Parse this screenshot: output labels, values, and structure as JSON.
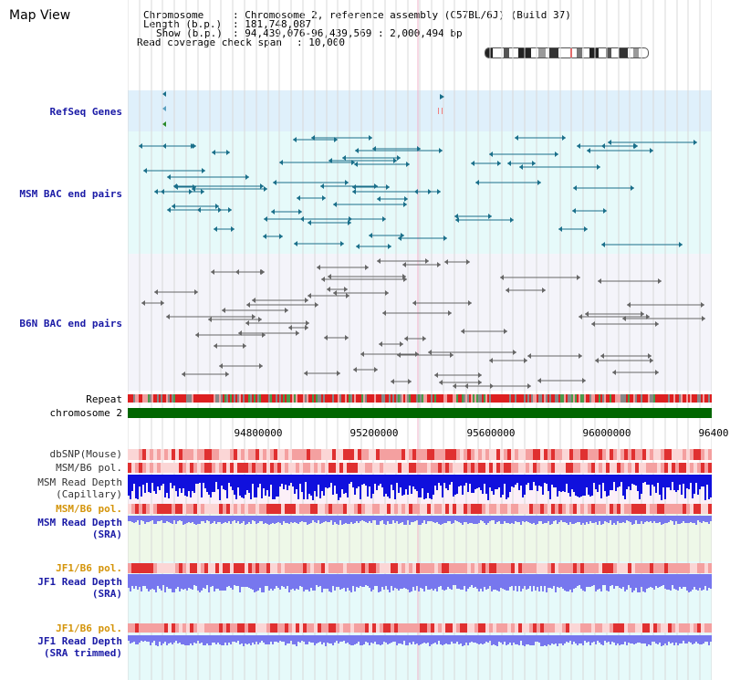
{
  "title": "Map View",
  "header": {
    "chromosome_label": "Chromosome",
    "chromosome_value": ": Chromosome 2, reference assembly (C57BL/6J) (Build 37)",
    "length_label": "Length (b.p.)",
    "length_value": ": 181,748,087",
    "show_label": "Show (b.p.)",
    "show_value": ": 94,439,076-96,439,569 : 2,000,494 bp",
    "coverage_label": "Read coverage check span",
    "coverage_value": ": 10,000"
  },
  "tracks": {
    "refseq": "RefSeq Genes",
    "msm_bac": "MSM BAC end pairs",
    "b6n_bac": "B6N BAC end pairs",
    "repeat": "Repeat",
    "chromosome": "chromosome 2",
    "dbsnp": "dbSNP(Mouse)",
    "msm_b6_pol_1": "MSM/B6 pol.",
    "msm_depth_cap_1": "MSM Read Depth",
    "msm_depth_cap_2": "(Capillary)",
    "msm_b6_pol_2": "MSM/B6 pol.",
    "msm_depth_sra_1": "MSM Read Depth",
    "msm_depth_sra_2": "(SRA)",
    "jf1_b6_pol_1": "JF1/B6 pol.",
    "jf1_depth_1": "JF1 Read Depth",
    "jf1_depth_2": "(SRA)",
    "jf1_b6_pol_2": "JF1/B6 pol.",
    "jf1_trim_1": "JF1 Read Depth",
    "jf1_trim_2": "(SRA trimmed)"
  },
  "axis_ticks": [
    "94800000",
    "95200000",
    "95600000",
    "96000000",
    "96400"
  ],
  "colors": {
    "refseq_bg": "#dff0fb",
    "msm_bg": "#e6fafa",
    "b6n_bg": "#f4f4fa",
    "msm_feature": "#1a6f8a",
    "b6n_feature": "#666666",
    "chromosome": "#006600",
    "depth_blue": "#1010dd",
    "depth_light": "#7777ee",
    "pol_red": "#e03030",
    "pol_pink": "#f4a0a0"
  }
}
